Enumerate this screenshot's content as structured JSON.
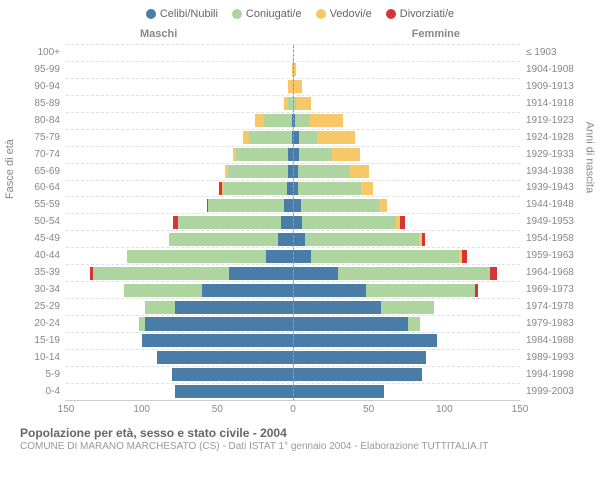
{
  "chart": {
    "type": "population-pyramid-stacked",
    "legend": [
      {
        "label": "Celibi/Nubili",
        "color": "#4a7ca8"
      },
      {
        "label": "Coniugati/e",
        "color": "#aed4a0"
      },
      {
        "label": "Vedovi/e",
        "color": "#f8c767"
      },
      {
        "label": "Divorziati/e",
        "color": "#d43535"
      }
    ],
    "side_left_label": "Maschi",
    "side_right_label": "Femmine",
    "y_axis_left_title": "Fasce di età",
    "y_axis_right_title": "Anni di nascita",
    "x_max": 150,
    "x_ticks": [
      -150,
      -100,
      -50,
      0,
      50,
      100,
      150
    ],
    "x_tick_labels": [
      "150",
      "100",
      "50",
      "0",
      "50",
      "100",
      "150"
    ],
    "background_color": "#ffffff",
    "grid_color": "#e0e0e0",
    "axis_color": "#cccccc",
    "label_color": "#888888",
    "rows": [
      {
        "age": "100+",
        "birth": "≤ 1903",
        "m": [
          0,
          0,
          0,
          0
        ],
        "f": [
          0,
          0,
          0,
          0
        ]
      },
      {
        "age": "95-99",
        "birth": "1904-1908",
        "m": [
          0,
          0,
          1,
          0
        ],
        "f": [
          0,
          0,
          2,
          0
        ]
      },
      {
        "age": "90-94",
        "birth": "1909-1913",
        "m": [
          0,
          0,
          3,
          0
        ],
        "f": [
          0,
          0,
          6,
          0
        ]
      },
      {
        "age": "85-89",
        "birth": "1914-1918",
        "m": [
          0,
          3,
          3,
          0
        ],
        "f": [
          0,
          2,
          10,
          0
        ]
      },
      {
        "age": "80-84",
        "birth": "1919-1923",
        "m": [
          1,
          18,
          6,
          0
        ],
        "f": [
          1,
          10,
          22,
          0
        ]
      },
      {
        "age": "75-79",
        "birth": "1924-1928",
        "m": [
          1,
          28,
          4,
          0
        ],
        "f": [
          4,
          12,
          25,
          0
        ]
      },
      {
        "age": "70-74",
        "birth": "1929-1933",
        "m": [
          3,
          35,
          2,
          0
        ],
        "f": [
          4,
          22,
          18,
          0
        ]
      },
      {
        "age": "65-69",
        "birth": "1934-1938",
        "m": [
          3,
          40,
          2,
          0
        ],
        "f": [
          3,
          35,
          12,
          0
        ]
      },
      {
        "age": "60-64",
        "birth": "1939-1943",
        "m": [
          4,
          42,
          1,
          2
        ],
        "f": [
          3,
          42,
          8,
          0
        ]
      },
      {
        "age": "55-59",
        "birth": "1944-1948",
        "m": [
          6,
          50,
          0,
          1
        ],
        "f": [
          5,
          52,
          5,
          0
        ]
      },
      {
        "age": "50-54",
        "birth": "1949-1953",
        "m": [
          8,
          68,
          0,
          3
        ],
        "f": [
          6,
          62,
          3,
          3
        ]
      },
      {
        "age": "45-49",
        "birth": "1954-1958",
        "m": [
          10,
          72,
          0,
          0
        ],
        "f": [
          8,
          75,
          2,
          2
        ]
      },
      {
        "age": "40-44",
        "birth": "1959-1963",
        "m": [
          18,
          92,
          0,
          0
        ],
        "f": [
          12,
          98,
          2,
          3
        ]
      },
      {
        "age": "35-39",
        "birth": "1964-1968",
        "m": [
          42,
          90,
          0,
          2
        ],
        "f": [
          30,
          100,
          0,
          5
        ]
      },
      {
        "age": "30-34",
        "birth": "1969-1973",
        "m": [
          60,
          52,
          0,
          0
        ],
        "f": [
          48,
          72,
          0,
          2
        ]
      },
      {
        "age": "25-29",
        "birth": "1974-1978",
        "m": [
          78,
          20,
          0,
          0
        ],
        "f": [
          58,
          35,
          0,
          0
        ]
      },
      {
        "age": "20-24",
        "birth": "1979-1983",
        "m": [
          98,
          4,
          0,
          0
        ],
        "f": [
          76,
          8,
          0,
          0
        ]
      },
      {
        "age": "15-19",
        "birth": "1984-1988",
        "m": [
          100,
          0,
          0,
          0
        ],
        "f": [
          95,
          0,
          0,
          0
        ]
      },
      {
        "age": "10-14",
        "birth": "1989-1993",
        "m": [
          90,
          0,
          0,
          0
        ],
        "f": [
          88,
          0,
          0,
          0
        ]
      },
      {
        "age": "5-9",
        "birth": "1994-1998",
        "m": [
          80,
          0,
          0,
          0
        ],
        "f": [
          85,
          0,
          0,
          0
        ]
      },
      {
        "age": "0-4",
        "birth": "1999-2003",
        "m": [
          78,
          0,
          0,
          0
        ],
        "f": [
          60,
          0,
          0,
          0
        ]
      }
    ]
  },
  "footer": {
    "title": "Popolazione per età, sesso e stato civile - 2004",
    "subtitle": "COMUNE DI MARANO MARCHESATO (CS) - Dati ISTAT 1° gennaio 2004 - Elaborazione TUTTITALIA.IT"
  }
}
